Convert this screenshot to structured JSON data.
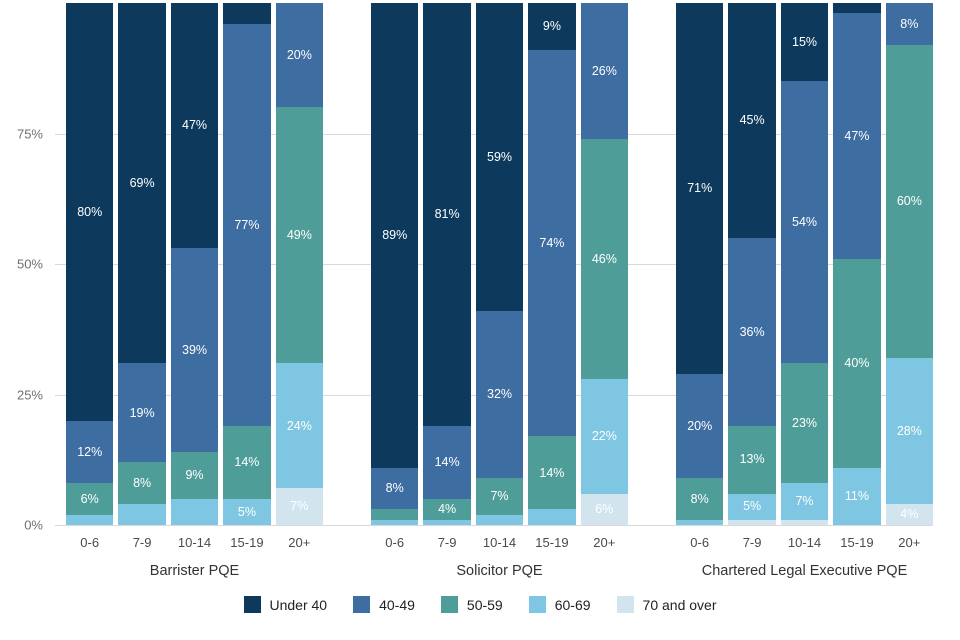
{
  "chart_data": {
    "type": "bar",
    "stacked": true,
    "title": "",
    "xlabel": "",
    "ylabel": "",
    "ylim": [
      0,
      100
    ],
    "grid": true,
    "legend_position": "bottom",
    "y_ticks": [
      {
        "value": 0,
        "label": "0%"
      },
      {
        "value": 25,
        "label": "25%"
      },
      {
        "value": 50,
        "label": "50%"
      },
      {
        "value": 75,
        "label": "75%"
      }
    ],
    "series": [
      {
        "name": "Under 40",
        "color": "#0d3a5c"
      },
      {
        "name": "40-49",
        "color": "#3d6da1"
      },
      {
        "name": "50-59",
        "color": "#4f9d99"
      },
      {
        "name": "60-69",
        "color": "#7ec6e2"
      },
      {
        "name": "70 and over",
        "color": "#d2e5ef"
      }
    ],
    "groups": [
      {
        "label": "Barrister PQE",
        "bars": [
          {
            "category": "0-6",
            "values": [
              80,
              12,
              6,
              2,
              0
            ],
            "labels": [
              "80%",
              "12%",
              "6%",
              "",
              ""
            ]
          },
          {
            "category": "7-9",
            "values": [
              69,
              19,
              8,
              4,
              0
            ],
            "labels": [
              "69%",
              "19%",
              "8%",
              "",
              ""
            ]
          },
          {
            "category": "10-14",
            "values": [
              47,
              39,
              9,
              5,
              0
            ],
            "labels": [
              "47%",
              "39%",
              "9%",
              "",
              ""
            ]
          },
          {
            "category": "15-19",
            "values": [
              4,
              77,
              14,
              5,
              0
            ],
            "labels": [
              "",
              "77%",
              "14%",
              "5%",
              ""
            ]
          },
          {
            "category": "20+",
            "values": [
              0,
              20,
              49,
              24,
              7
            ],
            "labels": [
              "",
              "20%",
              "49%",
              "24%",
              "7%"
            ]
          }
        ]
      },
      {
        "label": "Solicitor PQE",
        "bars": [
          {
            "category": "0-6",
            "values": [
              89,
              8,
              2,
              1,
              0
            ],
            "labels": [
              "89%",
              "8%",
              "",
              "",
              ""
            ]
          },
          {
            "category": "7-9",
            "values": [
              81,
              14,
              4,
              1,
              0
            ],
            "labels": [
              "81%",
              "14%",
              "4%",
              "",
              ""
            ]
          },
          {
            "category": "10-14",
            "values": [
              59,
              32,
              7,
              2,
              0
            ],
            "labels": [
              "59%",
              "32%",
              "7%",
              "",
              ""
            ]
          },
          {
            "category": "15-19",
            "values": [
              9,
              74,
              14,
              3,
              0
            ],
            "labels": [
              "9%",
              "74%",
              "14%",
              "",
              ""
            ]
          },
          {
            "category": "20+",
            "values": [
              0,
              26,
              46,
              22,
              6
            ],
            "labels": [
              "",
              "26%",
              "46%",
              "22%",
              "6%"
            ]
          }
        ]
      },
      {
        "label": "Chartered Legal Executive PQE",
        "bars": [
          {
            "category": "0-6",
            "values": [
              71,
              20,
              8,
              1,
              0
            ],
            "labels": [
              "71%",
              "20%",
              "8%",
              "",
              ""
            ]
          },
          {
            "category": "7-9",
            "values": [
              45,
              36,
              13,
              5,
              1
            ],
            "labels": [
              "45%",
              "36%",
              "13%",
              "5%",
              ""
            ]
          },
          {
            "category": "10-14",
            "values": [
              15,
              54,
              23,
              7,
              1
            ],
            "labels": [
              "15%",
              "54%",
              "23%",
              "7%",
              ""
            ]
          },
          {
            "category": "15-19",
            "values": [
              2,
              47,
              40,
              11,
              0
            ],
            "labels": [
              "",
              "47%",
              "40%",
              "11%",
              ""
            ]
          },
          {
            "category": "20+",
            "values": [
              0,
              8,
              60,
              28,
              4
            ],
            "labels": [
              "",
              "8%",
              "60%",
              "28%",
              "4%"
            ]
          }
        ]
      }
    ]
  }
}
